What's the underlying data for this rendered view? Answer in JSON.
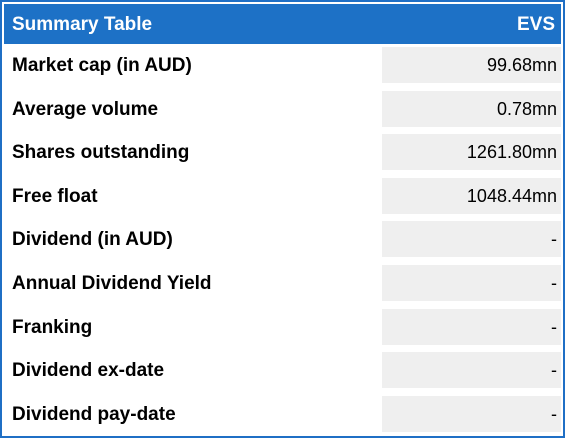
{
  "table": {
    "title": "Summary Table",
    "ticker": "EVS",
    "rows": [
      {
        "label": "Market cap (in AUD)",
        "value": "99.68mn"
      },
      {
        "label": "Average volume",
        "value": "0.78mn"
      },
      {
        "label": "Shares outstanding",
        "value": "1261.80mn"
      },
      {
        "label": "Free float",
        "value": "1048.44mn"
      },
      {
        "label": "Dividend (in AUD)",
        "value": "-"
      },
      {
        "label": "Annual Dividend Yield",
        "value": "-"
      },
      {
        "label": "Franking",
        "value": "-"
      },
      {
        "label": "Dividend ex-date",
        "value": "-"
      },
      {
        "label": "Dividend pay-date",
        "value": "-"
      }
    ]
  },
  "colors": {
    "header_bg": "#1d71c6",
    "border": "#1f6fc5",
    "value_bg": "#efefef"
  }
}
